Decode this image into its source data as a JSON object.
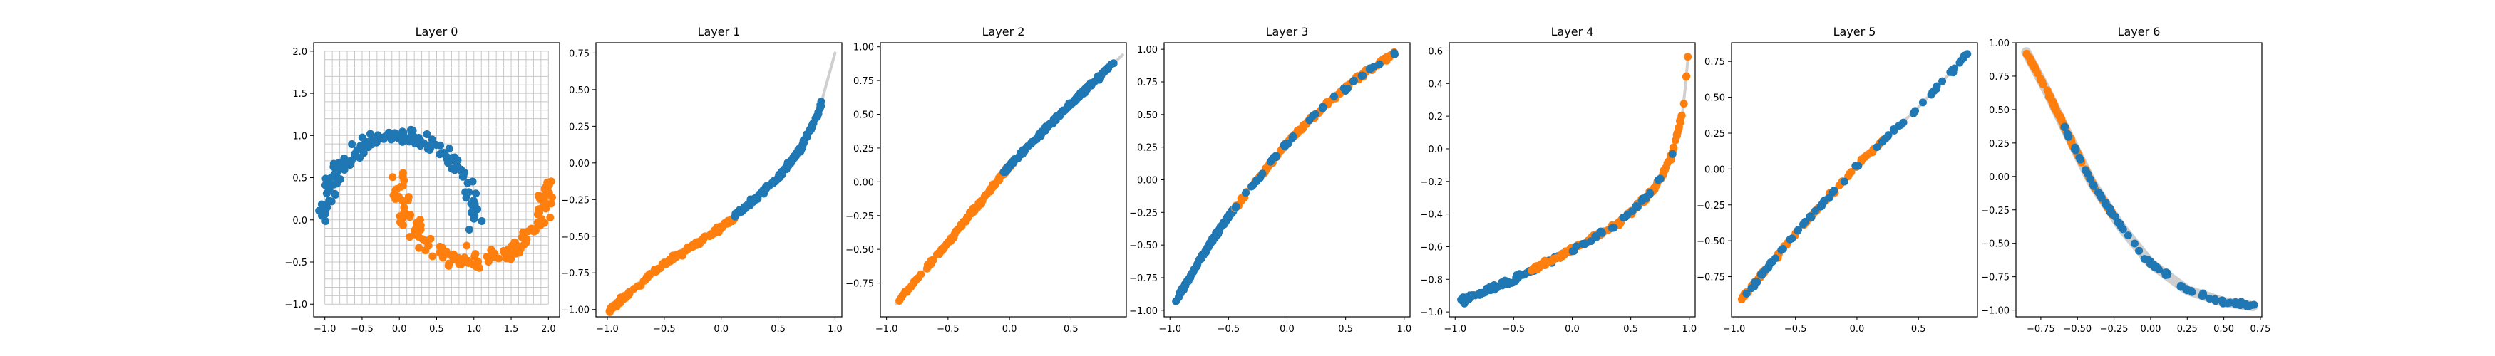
{
  "colors": {
    "blue": "#1f77b4",
    "orange": "#ff7f0e",
    "grid": "#c8c8c8",
    "curve": "#cfcfcf",
    "axis": "#000000"
  },
  "chart_data": [
    {
      "type": "scatter",
      "title": "Layer 0",
      "xlim": [
        -1.15,
        2.15
      ],
      "ylim": [
        -1.15,
        2.1
      ],
      "xticks": [
        -1.0,
        -0.5,
        0.0,
        0.5,
        1.0,
        1.5,
        2.0
      ],
      "xtick_labels": [
        "−1.0",
        "−0.5",
        "0.0",
        "0.5",
        "1.0",
        "1.5",
        "2.0"
      ],
      "yticks": [
        -1.0,
        -0.5,
        0.0,
        0.5,
        1.0,
        1.5,
        2.0
      ],
      "ytick_labels": [
        "−1.0",
        "−0.5",
        "0.0",
        "0.5",
        "1.0",
        "1.5",
        "2.0"
      ],
      "grid": true,
      "grid_range": {
        "x": [
          -1.0,
          2.0
        ],
        "y": [
          -1.0,
          2.0
        ],
        "step": 0.1
      },
      "series": [
        {
          "shape": "upper-moon",
          "color": "blue",
          "center": [
            0,
            0
          ],
          "radius": 1.0,
          "angle_deg": [
            0,
            180
          ],
          "noise": 0.05,
          "n": 150
        },
        {
          "shape": "lower-moon",
          "color": "orange",
          "center": [
            1,
            0.5
          ],
          "radius": 1.0,
          "angle_deg": [
            180,
            360
          ],
          "noise": 0.05,
          "n": 150
        }
      ]
    },
    {
      "type": "scatter",
      "title": "Layer 1",
      "xlim": [
        -1.1,
        1.06
      ],
      "ylim": [
        -1.05,
        0.82
      ],
      "xticks": [
        -1.0,
        -0.5,
        0.0,
        0.5,
        1.0
      ],
      "xtick_labels": [
        "−1.0",
        "−0.5",
        "0.0",
        "0.5",
        "1.0"
      ],
      "yticks": [
        -1.0,
        -0.75,
        -0.5,
        -0.25,
        0.0,
        0.25,
        0.5,
        0.75
      ],
      "ytick_labels": [
        "−1.00",
        "−0.75",
        "−0.50",
        "−0.25",
        "0.00",
        "0.25",
        "0.50",
        "0.75"
      ],
      "curve": [
        [
          -1.0,
          -1.0
        ],
        [
          -0.5,
          -0.67
        ],
        [
          0.0,
          -0.42
        ],
        [
          0.3,
          -0.25
        ],
        [
          0.5,
          -0.1
        ],
        [
          0.7,
          0.1
        ],
        [
          0.85,
          0.33
        ],
        [
          1.0,
          0.75
        ]
      ],
      "series": [
        {
          "color": "orange",
          "x_range": [
            -1.0,
            0.12
          ],
          "offset": -0.02,
          "n": 150
        },
        {
          "color": "blue",
          "x_range": [
            0.12,
            0.88
          ],
          "offset": 0.0,
          "n": 150
        }
      ]
    },
    {
      "type": "scatter",
      "title": "Layer 2",
      "xlim": [
        -1.05,
        0.95
      ],
      "ylim": [
        -1.0,
        1.03
      ],
      "xticks": [
        -1.0,
        -0.5,
        0.0,
        0.5
      ],
      "xtick_labels": [
        "−1.0",
        "−0.5",
        "0.0",
        "0.5"
      ],
      "yticks": [
        -0.75,
        -0.5,
        -0.25,
        0.0,
        0.25,
        0.5,
        0.75,
        1.0
      ],
      "ytick_labels": [
        "−0.75",
        "−0.50",
        "−0.25",
        "0.00",
        "0.25",
        "0.50",
        "0.75",
        "1.00"
      ],
      "curve": [
        [
          -0.92,
          -0.9
        ],
        [
          -0.5,
          -0.45
        ],
        [
          0.0,
          0.12
        ],
        [
          0.5,
          0.58
        ],
        [
          0.92,
          0.94
        ]
      ],
      "series": [
        {
          "color": "orange",
          "x_range": [
            -0.9,
            0.05
          ],
          "offset": 0.0,
          "n": 150
        },
        {
          "color": "blue",
          "x_range": [
            -0.05,
            0.85
          ],
          "offset": 0.0,
          "n": 150
        }
      ]
    },
    {
      "type": "scatter",
      "title": "Layer 3",
      "xlim": [
        -1.05,
        1.05
      ],
      "ylim": [
        -1.05,
        1.05
      ],
      "xticks": [
        -1.0,
        -0.5,
        0.0,
        0.5,
        1.0
      ],
      "xtick_labels": [
        "−1.0",
        "−0.5",
        "0.0",
        "0.5",
        "1.0"
      ],
      "yticks": [
        -1.0,
        -0.75,
        -0.5,
        -0.25,
        0.0,
        0.25,
        0.5,
        0.75,
        1.0
      ],
      "ytick_labels": [
        "−1.00",
        "−0.75",
        "−0.50",
        "−0.25",
        "0.00",
        "0.25",
        "0.50",
        "0.75",
        "1.00"
      ],
      "curve": [
        [
          -0.95,
          -0.93
        ],
        [
          -0.7,
          -0.55
        ],
        [
          -0.5,
          -0.28
        ],
        [
          -0.3,
          -0.05
        ],
        [
          0.0,
          0.28
        ],
        [
          0.3,
          0.55
        ],
        [
          0.6,
          0.78
        ],
        [
          0.9,
          0.96
        ]
      ],
      "series": [
        {
          "color": "blue",
          "x_range": [
            -0.95,
            -0.45
          ],
          "offset": 0.0,
          "n": 110
        },
        {
          "color": "orange",
          "x_range": [
            -0.45,
            0.92
          ],
          "offset": 0.0,
          "n": 150
        },
        {
          "color": "blue",
          "x_range": [
            -0.45,
            0.92
          ],
          "offset": 0.0,
          "n": 40
        }
      ]
    },
    {
      "type": "scatter",
      "title": "Layer 4",
      "xlim": [
        -1.05,
        1.05
      ],
      "ylim": [
        -1.03,
        0.65
      ],
      "xticks": [
        -1.0,
        -0.5,
        0.0,
        0.5,
        1.0
      ],
      "xtick_labels": [
        "−1.0",
        "−0.5",
        "0.0",
        "0.5",
        "1.0"
      ],
      "yticks": [
        -1.0,
        -0.8,
        -0.6,
        -0.4,
        -0.2,
        0.0,
        0.2,
        0.4,
        0.6
      ],
      "ytick_labels": [
        "−1.0",
        "−0.8",
        "−0.6",
        "−0.4",
        "−0.2",
        "0.0",
        "0.2",
        "0.4",
        "0.6"
      ],
      "curve": [
        [
          -0.95,
          -0.93
        ],
        [
          -0.5,
          -0.8
        ],
        [
          0.0,
          -0.62
        ],
        [
          0.4,
          -0.45
        ],
        [
          0.7,
          -0.25
        ],
        [
          0.85,
          -0.05
        ],
        [
          0.95,
          0.25
        ],
        [
          0.99,
          0.57
        ]
      ],
      "series": [
        {
          "color": "blue",
          "x_range": [
            -0.95,
            -0.05
          ],
          "offset": 0.0,
          "n": 90
        },
        {
          "color": "orange",
          "x_range": [
            -0.35,
            0.99
          ],
          "offset": 0.0,
          "n": 150
        },
        {
          "color": "blue",
          "x_range": [
            0.0,
            0.9
          ],
          "offset": 0.0,
          "n": 30
        }
      ]
    },
    {
      "type": "scatter",
      "title": "Layer 5",
      "xlim": [
        -1.02,
        0.98
      ],
      "ylim": [
        -1.03,
        0.88
      ],
      "xticks": [
        -1.0,
        -0.5,
        0.0,
        0.5
      ],
      "xtick_labels": [
        "−1.0",
        "−0.5",
        "0.0",
        "0.5"
      ],
      "yticks": [
        -0.75,
        -0.5,
        -0.25,
        0.0,
        0.25,
        0.5,
        0.75
      ],
      "ytick_labels": [
        "−0.75",
        "−0.50",
        "−0.25",
        "0.00",
        "0.25",
        "0.50",
        "0.75"
      ],
      "curve": [
        [
          -0.95,
          -0.92
        ],
        [
          -0.5,
          -0.45
        ],
        [
          0.0,
          0.02
        ],
        [
          0.5,
          0.43
        ],
        [
          0.9,
          0.8
        ]
      ],
      "series": [
        {
          "color": "orange",
          "x_range": [
            -0.95,
            0.25
          ],
          "offset": 0.0,
          "n": 80
        },
        {
          "color": "blue",
          "x_range": [
            -0.9,
            0.9
          ],
          "offset": 0.0,
          "n": 70
        }
      ]
    },
    {
      "type": "scatter",
      "title": "Layer 6",
      "xlim": [
        -0.92,
        0.76
      ],
      "ylim": [
        -1.05,
        1.0
      ],
      "xticks": [
        -0.75,
        -0.5,
        -0.25,
        0.0,
        0.25,
        0.5,
        0.75
      ],
      "xtick_labels": [
        "−0.75",
        "−0.50",
        "−0.25",
        "0.00",
        "0.25",
        "0.50",
        "0.75"
      ],
      "yticks": [
        -1.0,
        -0.75,
        -0.5,
        -0.25,
        0.0,
        0.25,
        0.5,
        0.75,
        1.0
      ],
      "ytick_labels": [
        "−1.00",
        "−0.75",
        "−0.50",
        "−0.25",
        "0.00",
        "0.25",
        "0.50",
        "0.75",
        "1.00"
      ],
      "curve": [
        [
          -0.85,
          0.93
        ],
        [
          -0.7,
          0.62
        ],
        [
          -0.55,
          0.28
        ],
        [
          -0.4,
          -0.05
        ],
        [
          -0.2,
          -0.38
        ],
        [
          0.0,
          -0.65
        ],
        [
          0.25,
          -0.85
        ],
        [
          0.5,
          -0.94
        ],
        [
          0.7,
          -0.97
        ]
      ],
      "curve_width": 14,
      "series": [
        {
          "color": "orange",
          "x_range": [
            -0.85,
            -0.25
          ],
          "offset": 0.0,
          "n": 110
        },
        {
          "color": "blue",
          "x_range": [
            -0.6,
            0.72
          ],
          "offset": 0.0,
          "n": 90
        }
      ]
    }
  ]
}
